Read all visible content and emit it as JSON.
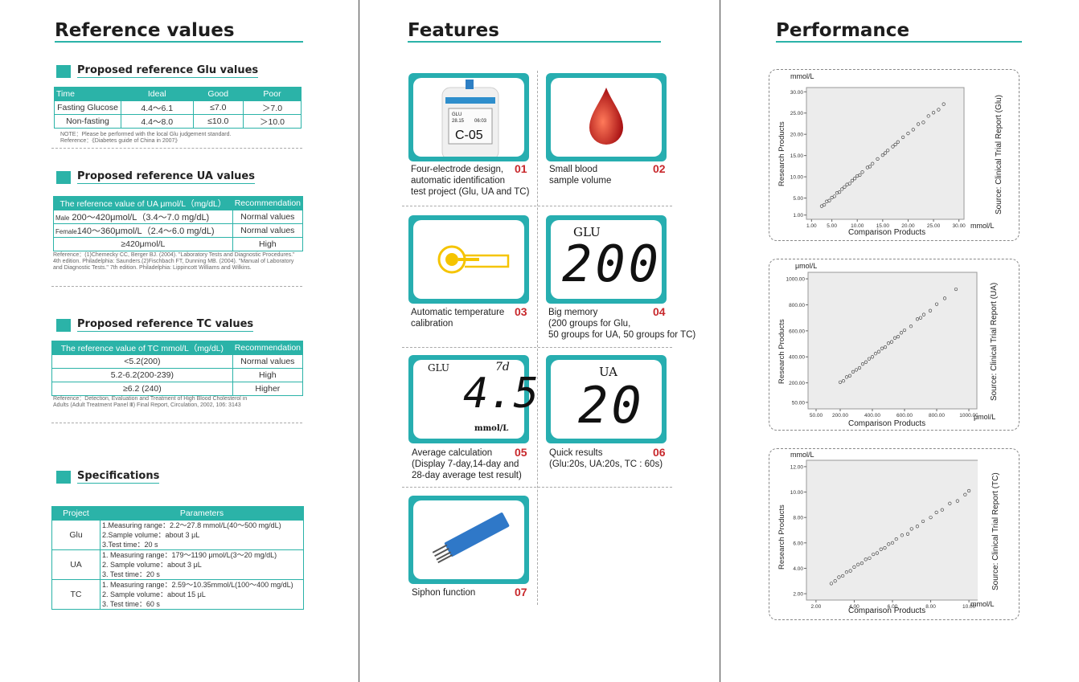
{
  "reference": {
    "title": "Reference values",
    "glu": {
      "heading": "Proposed reference Glu values",
      "headers": [
        "Time",
        "Ideal",
        "Good",
        "Poor"
      ],
      "rows": [
        [
          "Fasting Glucose",
          "4.4～6.1",
          "≤7.0",
          "＞7.0"
        ],
        [
          "Non-fasting",
          "4.4～8.0",
          "≤10.0",
          "＞10.0"
        ]
      ],
      "note1": "NOTE：Please be performed with the local Glu judgement standard.",
      "note2": "Reference：《Diabetes guide of China in 2007》"
    },
    "ua": {
      "heading": "Proposed reference UA values",
      "headers": [
        "The reference value of UA  μmol/L（mg/dL）",
        "Recommendation"
      ],
      "rows": [
        {
          "sex": "Male",
          "range": "200～420μmol/L（3.4～7.0 mg/dL)",
          "rec": "Normal values"
        },
        {
          "sex": "Female",
          "range": "140～360μmol/L（2.4～6.0 mg/dL)",
          "rec": "Normal values"
        },
        {
          "sex": "",
          "range": "≥420μmol/L",
          "rec": "High"
        }
      ],
      "note": "Reference：(1)Chemecky CC, Berger BJ. (2004). \"Laboratory Tests and Diagnostic Procedures.\" 4th edition. Philadelphia: Saunders.(2)Fischbach FT, Dunning MB. (2004). \"Manual of Laboratory and Diagnostic Tests.\" 7th edition. Philadelphia: Lippincott Williams and Wilkins."
    },
    "tc": {
      "heading": "Proposed reference TC values",
      "headers": [
        "The reference value of TC  mmol/L（mg/dL)",
        "Recommendation"
      ],
      "rows": [
        [
          "<5.2(200)",
          "Normal values"
        ],
        [
          "5.2-6.2(200-239)",
          "High"
        ],
        [
          "≥6.2 (240)",
          "Higher"
        ]
      ],
      "note": "Reference：Detection, Evaluation and Treatment of High Blood Cholesterol in Adults (Adult Treatment Panel Ⅲ) Final Report, Circulation, 2002, 106: 3143"
    },
    "spec": {
      "heading": "Specifications",
      "headers": [
        "Project",
        "Parameters"
      ],
      "rows": [
        {
          "project": "Glu",
          "lines": [
            "1.Measuring range：2.2～27.8 mmol/L(40～500 mg/dL)",
            "2.Sample volume：about 3 μL",
            "3.Test time：20 s"
          ]
        },
        {
          "project": "UA",
          "lines": [
            "1. Measuring range：179～1190 μmol/L(3～20 mg/dL)",
            "2. Sample volume：about 3 μL",
            "3. Test time：20 s"
          ]
        },
        {
          "project": "TC",
          "lines": [
            "1. Measuring range：2.59～10.35mmol/L(100～400 mg/dL)",
            "2. Sample volume：about 15 μL",
            "3. Test time：60 s"
          ]
        }
      ]
    }
  },
  "features": {
    "title": "Features",
    "meter": {
      "lbl": "GLU",
      "val1": "28.15",
      "val2": "06:03",
      "code": "C-05"
    },
    "lcd_glu200": {
      "label": "GLU",
      "value": "200"
    },
    "lcd_avg": {
      "label": "GLU",
      "period": "7d",
      "value": "4.5",
      "unit": "mmol/L"
    },
    "lcd_ua": {
      "label": "UA",
      "value": "20"
    },
    "items": [
      {
        "num": "01",
        "caption": [
          "Four-electrode design,",
          "automatic identification",
          "test project (Glu, UA and TC)"
        ]
      },
      {
        "num": "02",
        "caption": [
          "Small blood",
          "sample volume"
        ]
      },
      {
        "num": "03",
        "caption": [
          "Automatic temperature",
          "calibration"
        ]
      },
      {
        "num": "04",
        "caption": [
          "Big memory",
          "(200 groups for Glu,",
          "50 groups for UA, 50 groups for TC)"
        ]
      },
      {
        "num": "05",
        "caption": [
          "Average calculation",
          "(Display 7-day,14-day and",
          "28-day average test result)"
        ]
      },
      {
        "num": "06",
        "caption": [
          "Quick results",
          "(Glu:20s, UA:20s, TC : 60s)"
        ]
      },
      {
        "num": "07",
        "caption": [
          "Siphon function"
        ]
      }
    ]
  },
  "performance": {
    "title": "Performance",
    "x_title": "Comparison Products",
    "y_title": "Research Products"
  },
  "chart_data": [
    {
      "type": "scatter",
      "title": "",
      "xlabel": "Comparison Products",
      "ylabel": "Research Products",
      "x_unit": "mmol/L",
      "y_unit": "mmol/L",
      "source": "Source: Clinical Trial Report (Glu)",
      "xlim": [
        0,
        31
      ],
      "ylim": [
        0,
        31
      ],
      "xticks": [
        "1.00",
        "5.00",
        "10.00",
        "15.00",
        "20.00",
        "25.00",
        "30.00"
      ],
      "yticks": [
        "1.00",
        "5.00",
        "10.00",
        "15.00",
        "20.00",
        "25.00",
        "30.00"
      ],
      "x": [
        3,
        3.5,
        4,
        4.5,
        5,
        5.5,
        6,
        6.5,
        7,
        7.5,
        8,
        8.5,
        9,
        9.5,
        10,
        10.5,
        11,
        12,
        12.5,
        13,
        14,
        15,
        15.5,
        16,
        17,
        17.5,
        18,
        19,
        20,
        21,
        22,
        23,
        24,
        25,
        26,
        27
      ],
      "y": [
        3.1,
        3.4,
        4.2,
        4.4,
        5.1,
        5.4,
        6.2,
        6.4,
        7.1,
        7.6,
        8.2,
        8.4,
        9.1,
        9.6,
        10.2,
        10.4,
        11.1,
        12.2,
        12.4,
        13.1,
        14.2,
        15.1,
        15.6,
        16.2,
        17.1,
        17.6,
        18.2,
        19.3,
        20.2,
        21.1,
        22.4,
        22.8,
        24.3,
        25.1,
        25.8,
        27.1
      ]
    },
    {
      "type": "scatter",
      "title": "",
      "xlabel": "Comparison Products",
      "ylabel": "Research Products",
      "x_unit": "μmol/L",
      "y_unit": "μmol/L",
      "source": "Source: Clinical Trial Report (UA)",
      "xlim": [
        0,
        1050
      ],
      "ylim": [
        0,
        1050
      ],
      "xticks": [
        "50.00",
        "200.00",
        "400.00",
        "600.00",
        "800.00",
        "1000.00"
      ],
      "yticks": [
        "50.00",
        "200.00",
        "400.00",
        "600.00",
        "800.00",
        "1000.00"
      ],
      "x": [
        200,
        220,
        240,
        260,
        280,
        300,
        320,
        340,
        360,
        380,
        400,
        420,
        440,
        460,
        480,
        500,
        520,
        540,
        560,
        580,
        600,
        640,
        680,
        700,
        720,
        760,
        800,
        850,
        920
      ],
      "y": [
        205,
        215,
        245,
        255,
        285,
        300,
        315,
        345,
        360,
        385,
        400,
        425,
        440,
        465,
        475,
        505,
        515,
        545,
        555,
        585,
        605,
        635,
        690,
        700,
        725,
        755,
        805,
        850,
        920
      ]
    },
    {
      "type": "scatter",
      "title": "",
      "xlabel": "Comparison Products",
      "ylabel": "Research Products",
      "x_unit": "mmol/L",
      "y_unit": "mmol/L",
      "source": "Source: Clinical Trial Report (TC)",
      "xlim": [
        1.5,
        10.5
      ],
      "ylim": [
        1.5,
        12.5
      ],
      "xticks": [
        "2.00",
        "4.00",
        "6.00",
        "8.00",
        "10.00"
      ],
      "yticks": [
        "2.00",
        "4.00",
        "6.00",
        "8.00",
        "10.00",
        "12.00"
      ],
      "x": [
        2.8,
        3.0,
        3.2,
        3.4,
        3.6,
        3.8,
        4.0,
        4.2,
        4.4,
        4.6,
        4.8,
        5.0,
        5.2,
        5.4,
        5.6,
        5.8,
        6.0,
        6.2,
        6.5,
        6.8,
        7.0,
        7.3,
        7.6,
        8.0,
        8.3,
        8.6,
        9.0,
        9.4,
        9.8,
        10.0
      ],
      "y": [
        2.8,
        3.0,
        3.3,
        3.4,
        3.7,
        3.8,
        4.1,
        4.3,
        4.4,
        4.7,
        4.8,
        5.1,
        5.2,
        5.5,
        5.6,
        5.9,
        6.0,
        6.3,
        6.6,
        6.7,
        7.1,
        7.3,
        7.7,
        8.0,
        8.4,
        8.6,
        9.1,
        9.3,
        9.8,
        10.1
      ]
    }
  ]
}
